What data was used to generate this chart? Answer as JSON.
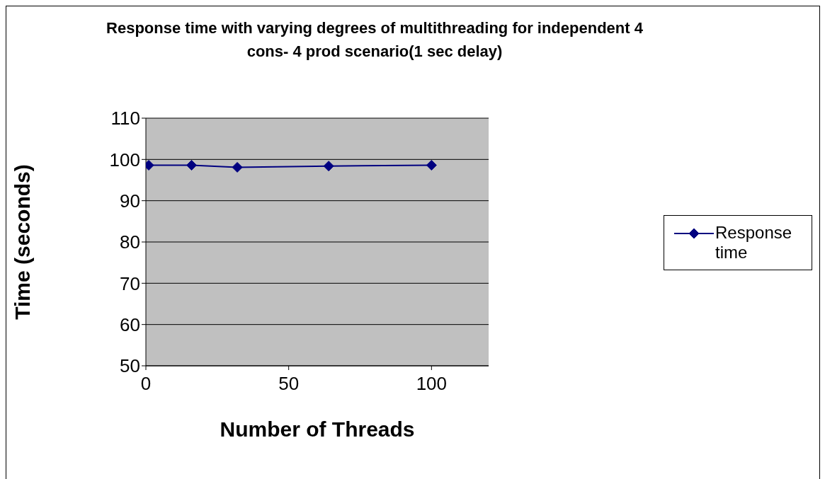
{
  "chart_data": {
    "type": "line",
    "title": "Response time with varying degrees of multithreading for independent 4 cons- 4 prod scenario(1 sec delay)",
    "xlabel": "Number of Threads",
    "ylabel": "Time (seconds)",
    "x": [
      1,
      16,
      32,
      64,
      100
    ],
    "series": [
      {
        "name": "Response time",
        "color": "#000080",
        "values": [
          98.6,
          98.6,
          98.1,
          98.4,
          98.6
        ]
      }
    ],
    "xlim": [
      0,
      120
    ],
    "xticks": [
      0,
      50,
      100
    ],
    "ylim": [
      50,
      110
    ],
    "yticks": [
      50,
      60,
      70,
      80,
      90,
      100,
      110
    ],
    "grid": "y",
    "legend": "right",
    "marker": "diamond",
    "line_style": "solid"
  }
}
